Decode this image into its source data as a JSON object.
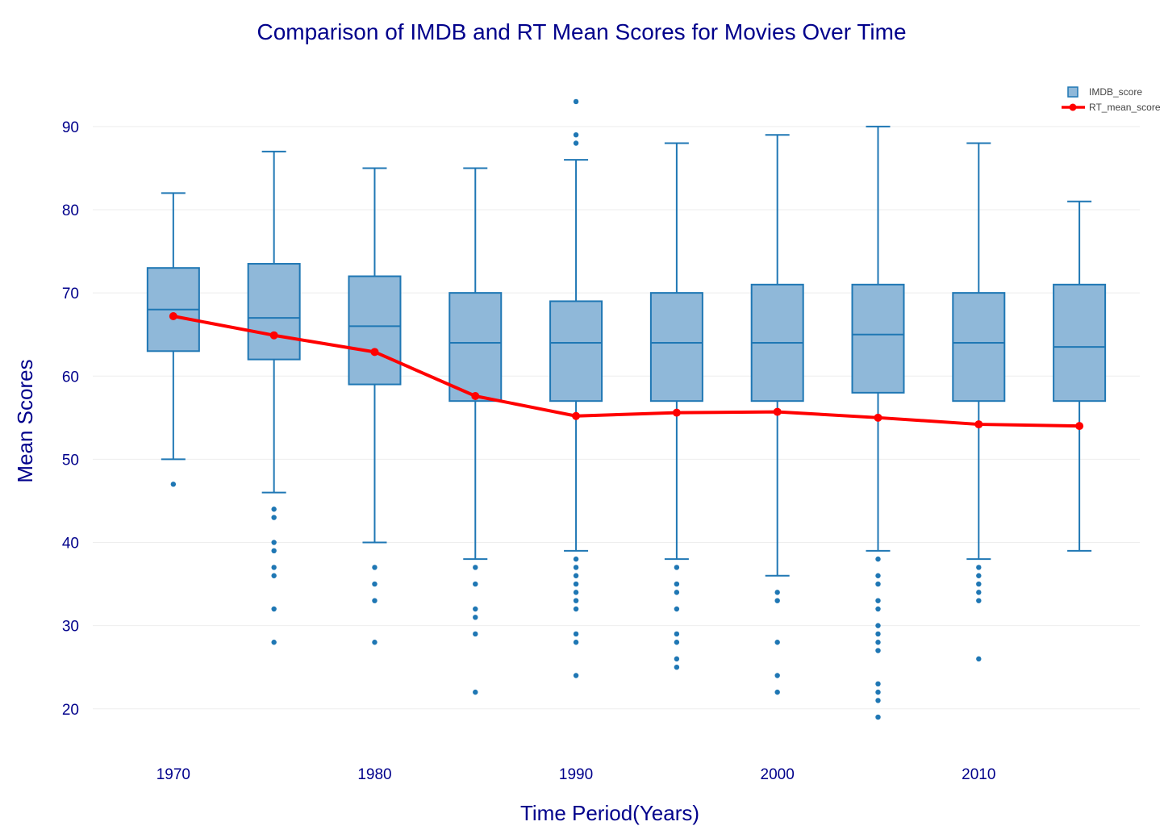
{
  "chart_data": {
    "type": "box",
    "title": "Comparison of IMDB and RT Mean Scores for Movies Over Time",
    "xlabel": "Time Period(Years)",
    "ylabel": "Mean Scores",
    "xlim": [
      1966,
      2018
    ],
    "ylim": [
      16,
      96
    ],
    "x_ticks": [
      1970,
      1980,
      1990,
      2000,
      2010
    ],
    "y_ticks": [
      20,
      30,
      40,
      50,
      60,
      70,
      80,
      90
    ],
    "grid": true,
    "legend_position": "top-right",
    "colors": {
      "title": "#00008b",
      "axis_text": "#00008b",
      "box_line": "#1f77b4",
      "box_fill": "#8fb8d9",
      "line": "#ff0000",
      "grid": "#eeeeee",
      "legend_text": "#444444"
    },
    "legend": [
      {
        "label": "IMDB_score",
        "symbol": "box-icon"
      },
      {
        "label": "RT_mean_score",
        "symbol": "line-marker-icon"
      }
    ],
    "box_series": {
      "name": "IMDB_score",
      "boxes": [
        {
          "x": 1970,
          "lower_whisker": 50,
          "q1": 63,
          "median": 68,
          "q3": 73,
          "upper_whisker": 82,
          "outliers": [
            47
          ]
        },
        {
          "x": 1975,
          "lower_whisker": 46,
          "q1": 62,
          "median": 67,
          "q3": 73.5,
          "upper_whisker": 87,
          "outliers": [
            44,
            43,
            40,
            39,
            37,
            36,
            32,
            28
          ]
        },
        {
          "x": 1980,
          "lower_whisker": 40,
          "q1": 59,
          "median": 66,
          "q3": 72,
          "upper_whisker": 85,
          "outliers": [
            37,
            35,
            33,
            28
          ]
        },
        {
          "x": 1985,
          "lower_whisker": 38,
          "q1": 57,
          "median": 64,
          "q3": 70,
          "upper_whisker": 85,
          "outliers": [
            37,
            35,
            32,
            31,
            29,
            22
          ]
        },
        {
          "x": 1990,
          "lower_whisker": 39,
          "q1": 57,
          "median": 64,
          "q3": 69,
          "upper_whisker": 86,
          "outliers": [
            93,
            89,
            88,
            38,
            37,
            36,
            35,
            34,
            33,
            32,
            29,
            28,
            24
          ]
        },
        {
          "x": 1995,
          "lower_whisker": 38,
          "q1": 57,
          "median": 64,
          "q3": 70,
          "upper_whisker": 88,
          "outliers": [
            37,
            35,
            34,
            32,
            29,
            28,
            26,
            25
          ]
        },
        {
          "x": 2000,
          "lower_whisker": 36,
          "q1": 57,
          "median": 64,
          "q3": 71,
          "upper_whisker": 89,
          "outliers": [
            34,
            33,
            28,
            24,
            22
          ]
        },
        {
          "x": 2005,
          "lower_whisker": 39,
          "q1": 58,
          "median": 65,
          "q3": 71,
          "upper_whisker": 90,
          "outliers": [
            38,
            36,
            35,
            33,
            32,
            30,
            29,
            28,
            27,
            23,
            22,
            21,
            19
          ]
        },
        {
          "x": 2010,
          "lower_whisker": 38,
          "q1": 57,
          "median": 64,
          "q3": 70,
          "upper_whisker": 88,
          "outliers": [
            37,
            36,
            35,
            34,
            33,
            26
          ]
        },
        {
          "x": 2015,
          "lower_whisker": 39,
          "q1": 57,
          "median": 63.5,
          "q3": 71,
          "upper_whisker": 81,
          "outliers": []
        }
      ]
    },
    "line_series": {
      "name": "RT_mean_score",
      "x": [
        1970,
        1975,
        1980,
        1985,
        1990,
        1995,
        2000,
        2005,
        2010,
        2015
      ],
      "y": [
        67.2,
        64.9,
        62.9,
        57.6,
        55.2,
        55.6,
        55.7,
        55.0,
        54.2,
        54.0
      ]
    }
  }
}
